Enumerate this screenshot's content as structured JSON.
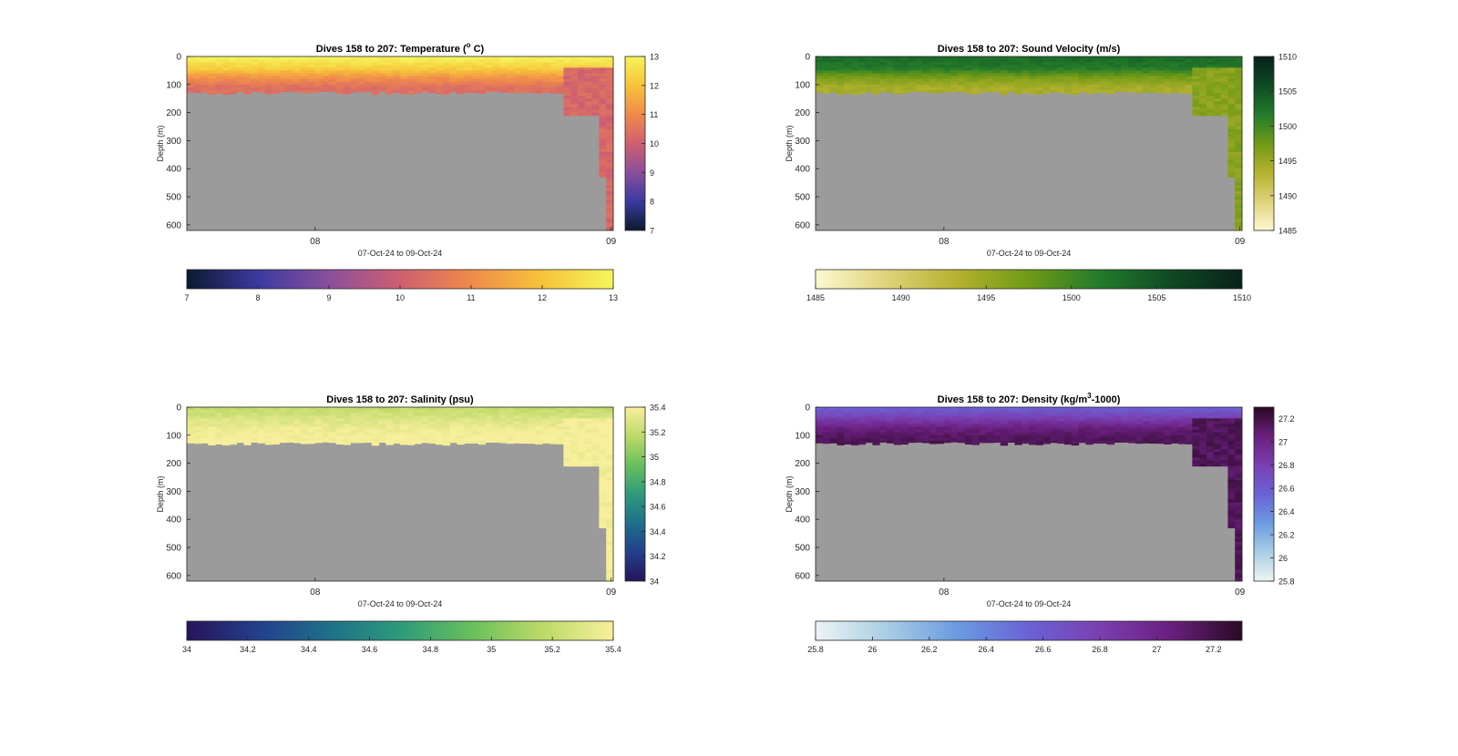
{
  "chart_data": [
    {
      "type": "heatmap",
      "title_main": "Dives 158 to 207: Temperature (",
      "title_sup": "o",
      "title_tail": " C)",
      "ylabel": "Depth (m)",
      "xlabel": "07-Oct-24 to 09-Oct-24",
      "xticks": [
        "08",
        "09"
      ],
      "yticks": [
        0,
        100,
        200,
        300,
        400,
        500,
        600
      ],
      "ylim": [
        0,
        620
      ],
      "colorbar_range": [
        7,
        13
      ],
      "colorbar_ticks": [
        7,
        8,
        9,
        10,
        11,
        12,
        13
      ],
      "horizontal_ticks": [
        7,
        8,
        9,
        10,
        11,
        12,
        13
      ],
      "colormap": [
        "#0b1a2e",
        "#3b3aa0",
        "#8a4f9c",
        "#cf5f70",
        "#f08a4b",
        "#f7c33a",
        "#f5f55a"
      ],
      "depth_profile": [
        [
          0,
          13
        ],
        [
          40,
          12.3
        ],
        [
          75,
          11.2
        ],
        [
          110,
          10.4
        ]
      ],
      "deep_section": {
        "base": 10.8,
        "value": 10.2
      },
      "seafloor_m": 130
    },
    {
      "type": "heatmap",
      "title_main": "Dives 158 to 207: Sound Velocity (m/s)",
      "title_sup": "",
      "title_tail": "",
      "ylabel": "Depth (m)",
      "xlabel": "07-Oct-24 to 09-Oct-24",
      "xticks": [
        "08",
        "09"
      ],
      "yticks": [
        0,
        100,
        200,
        300,
        400,
        500,
        600
      ],
      "ylim": [
        0,
        620
      ],
      "colorbar_range": [
        1485,
        1510
      ],
      "colorbar_ticks": [
        1485,
        1490,
        1495,
        1500,
        1505,
        1510
      ],
      "horizontal_ticks": [
        1485,
        1490,
        1495,
        1500,
        1505,
        1510
      ],
      "colormap": [
        "#fcf8d0",
        "#e0d27a",
        "#b4b12e",
        "#6f9a16",
        "#237a2b",
        "#0f4a23",
        "#08221a"
      ],
      "depth_profile": [
        [
          0,
          1503
        ],
        [
          40,
          1502
        ],
        [
          75,
          1497
        ],
        [
          110,
          1494
        ]
      ],
      "deep_section": {
        "base": 1496,
        "value": 1496
      },
      "seafloor_m": 130
    },
    {
      "type": "heatmap",
      "title_main": "Dives 158 to 207: Salinity (psu)",
      "title_sup": "",
      "title_tail": "",
      "ylabel": "Depth (m)",
      "xlabel": "07-Oct-24 to 09-Oct-24",
      "xticks": [
        "08",
        "09"
      ],
      "yticks": [
        0,
        100,
        200,
        300,
        400,
        500,
        600
      ],
      "ylim": [
        0,
        620
      ],
      "colorbar_range": [
        34,
        35.4
      ],
      "colorbar_ticks": [
        34,
        34.2,
        34.4,
        34.6,
        34.8,
        35,
        35.2,
        35.4
      ],
      "horizontal_ticks": [
        34,
        34.2,
        34.4,
        34.6,
        34.8,
        35,
        35.2,
        35.4
      ],
      "colormap": [
        "#26145a",
        "#233f8c",
        "#1f6f8a",
        "#2e9a7a",
        "#68bf5d",
        "#bcd968",
        "#f8ef9c"
      ],
      "depth_profile": [
        [
          0,
          35.18
        ],
        [
          40,
          35.28
        ],
        [
          75,
          35.36
        ],
        [
          110,
          35.4
        ]
      ],
      "deep_section": {
        "base": 35.38,
        "value": 35.4
      },
      "seafloor_m": 130
    },
    {
      "type": "heatmap",
      "title_main": "Dives 158 to 207: Density (kg/m",
      "title_sup": "3",
      "title_tail": "-1000)",
      "ylabel": "Depth (m)",
      "xlabel": "07-Oct-24 to 09-Oct-24",
      "xticks": [
        "08",
        "09"
      ],
      "yticks": [
        0,
        100,
        200,
        300,
        400,
        500,
        600
      ],
      "ylim": [
        0,
        620
      ],
      "colorbar_range": [
        25.8,
        27.3
      ],
      "colorbar_ticks": [
        25.8,
        26,
        26.2,
        26.4,
        26.6,
        26.8,
        27,
        27.2
      ],
      "horizontal_ticks": [
        25.8,
        26,
        26.2,
        26.4,
        26.6,
        26.8,
        27,
        27.2
      ],
      "colormap": [
        "#eef4f4",
        "#a9cde4",
        "#6a9be0",
        "#6a62d6",
        "#7a3fb0",
        "#6a1f7e",
        "#2a0a24"
      ],
      "depth_profile": [
        [
          0,
          26.55
        ],
        [
          40,
          26.8
        ],
        [
          75,
          27.05
        ],
        [
          110,
          27.15
        ]
      ],
      "deep_section": {
        "base": 27.1,
        "value": 27.15
      },
      "seafloor_m": 130
    }
  ]
}
